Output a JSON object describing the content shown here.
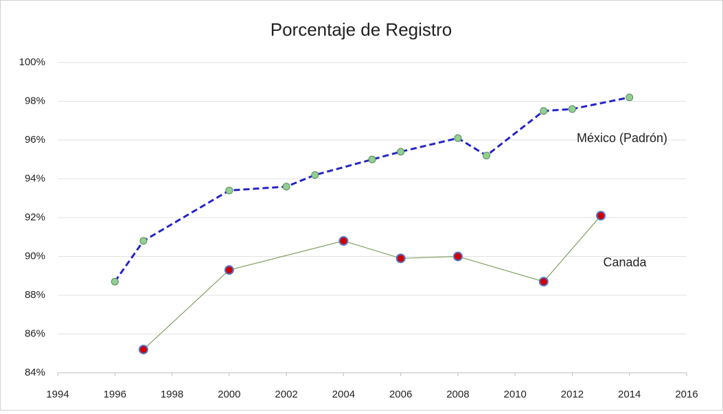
{
  "chart_data": {
    "type": "line",
    "title": "Porcentaje de Registro",
    "series": [
      {
        "name": "México (Padrón)",
        "color": "#2424c8",
        "marker_color": "#93cf93",
        "dashed": true,
        "x": [
          1996,
          1997,
          2000,
          2002,
          2003,
          2005,
          2006,
          2008,
          2009,
          2011,
          2012,
          2014
        ],
        "values": [
          88.7,
          90.8,
          93.4,
          93.6,
          94.2,
          95.0,
          95.4,
          96.1,
          95.2,
          97.5,
          97.6,
          98.2
        ]
      },
      {
        "name": "Canada",
        "color": "#7f9f5f",
        "marker_color": "#cc0000",
        "dashed": false,
        "x": [
          1997,
          2000,
          2004,
          2006,
          2008,
          2011,
          2013
        ],
        "values": [
          85.2,
          89.3,
          90.8,
          89.9,
          90.0,
          88.7,
          92.1
        ]
      }
    ],
    "xlim": [
      1994,
      2016
    ],
    "xticks": [
      1994,
      1996,
      1998,
      2000,
      2002,
      2004,
      2006,
      2008,
      2010,
      2012,
      2014,
      2016
    ],
    "ylim": [
      84,
      100
    ],
    "yticks": [
      {
        "value": 84,
        "label": "84%"
      },
      {
        "value": 86,
        "label": "86%"
      },
      {
        "value": 88,
        "label": "88%"
      },
      {
        "value": 90,
        "label": "90%"
      },
      {
        "value": 92,
        "label": "92%"
      },
      {
        "value": 94,
        "label": "94%"
      },
      {
        "value": 96,
        "label": "96%"
      },
      {
        "value": 98,
        "label": "98%"
      },
      {
        "value": 100,
        "label": "100%"
      }
    ],
    "grid": true
  }
}
